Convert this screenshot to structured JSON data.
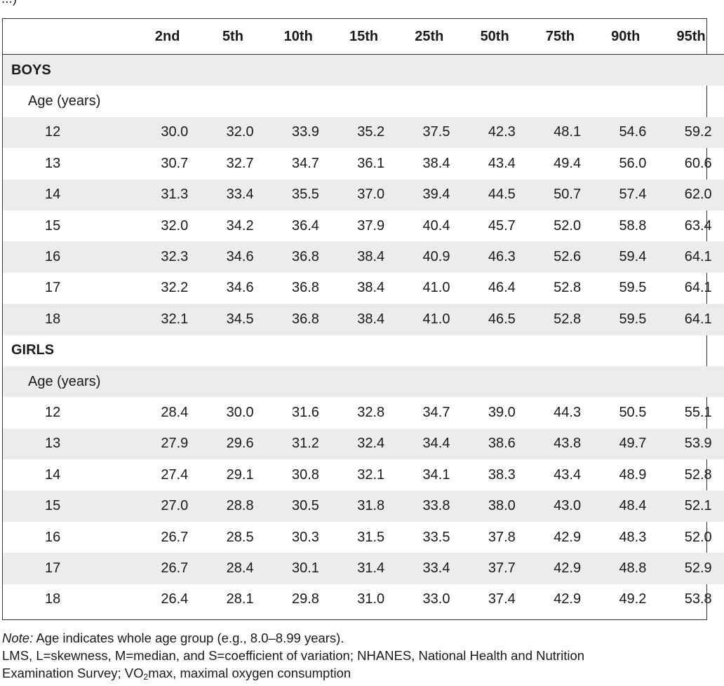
{
  "top_fragment": "...)",
  "table": {
    "header_blank": "",
    "columns": [
      "2nd",
      "5th",
      "10th",
      "15th",
      "25th",
      "50th",
      "75th",
      "90th",
      "95th"
    ],
    "groups": [
      {
        "label": "BOYS",
        "sublabel": "Age (years)",
        "rows": [
          {
            "age": "12",
            "values": [
              "30.0",
              "32.0",
              "33.9",
              "35.2",
              "37.5",
              "42.3",
              "48.1",
              "54.6",
              "59.2"
            ]
          },
          {
            "age": "13",
            "values": [
              "30.7",
              "32.7",
              "34.7",
              "36.1",
              "38.4",
              "43.4",
              "49.4",
              "56.0",
              "60.6"
            ]
          },
          {
            "age": "14",
            "values": [
              "31.3",
              "33.4",
              "35.5",
              "37.0",
              "39.4",
              "44.5",
              "50.7",
              "57.4",
              "62.0"
            ]
          },
          {
            "age": "15",
            "values": [
              "32.0",
              "34.2",
              "36.4",
              "37.9",
              "40.4",
              "45.7",
              "52.0",
              "58.8",
              "63.4"
            ]
          },
          {
            "age": "16",
            "values": [
              "32.3",
              "34.6",
              "36.8",
              "38.4",
              "40.9",
              "46.3",
              "52.6",
              "59.4",
              "64.1"
            ]
          },
          {
            "age": "17",
            "values": [
              "32.2",
              "34.6",
              "36.8",
              "38.4",
              "41.0",
              "46.4",
              "52.8",
              "59.5",
              "64.1"
            ]
          },
          {
            "age": "18",
            "values": [
              "32.1",
              "34.5",
              "36.8",
              "38.4",
              "41.0",
              "46.5",
              "52.8",
              "59.5",
              "64.1"
            ]
          }
        ]
      },
      {
        "label": "GIRLS",
        "sublabel": "Age (years)",
        "rows": [
          {
            "age": "12",
            "values": [
              "28.4",
              "30.0",
              "31.6",
              "32.8",
              "34.7",
              "39.0",
              "44.3",
              "50.5",
              "55.1"
            ]
          },
          {
            "age": "13",
            "values": [
              "27.9",
              "29.6",
              "31.2",
              "32.4",
              "34.4",
              "38.6",
              "43.8",
              "49.7",
              "53.9"
            ]
          },
          {
            "age": "14",
            "values": [
              "27.4",
              "29.1",
              "30.8",
              "32.1",
              "34.1",
              "38.3",
              "43.4",
              "48.9",
              "52.8"
            ]
          },
          {
            "age": "15",
            "values": [
              "27.0",
              "28.8",
              "30.5",
              "31.8",
              "33.8",
              "38.0",
              "43.0",
              "48.4",
              "52.1"
            ]
          },
          {
            "age": "16",
            "values": [
              "26.7",
              "28.5",
              "30.3",
              "31.5",
              "33.5",
              "37.8",
              "42.9",
              "48.3",
              "52.0"
            ]
          },
          {
            "age": "17",
            "values": [
              "26.7",
              "28.4",
              "30.1",
              "31.4",
              "33.4",
              "37.7",
              "42.9",
              "48.8",
              "52.9"
            ]
          },
          {
            "age": "18",
            "values": [
              "26.4",
              "28.1",
              "29.8",
              "31.0",
              "33.0",
              "37.4",
              "42.9",
              "49.2",
              "53.8"
            ]
          }
        ]
      }
    ]
  },
  "notes": {
    "note_label": "Note:",
    "note_text": " Age indicates whole age group (e.g., 8.0–8.99 years).",
    "abbrev_line1": "LMS, L=skewness, M=median, and S=coefficient of variation; NHANES, National Health and Nutrition",
    "abbrev_line2_prefix": "Examination Survey; VO",
    "abbrev_line2_sub": "2",
    "abbrev_line2_suffix": "max, maximal oxygen consumption"
  },
  "colors": {
    "shade": "#ececec",
    "rule": "#333333"
  }
}
